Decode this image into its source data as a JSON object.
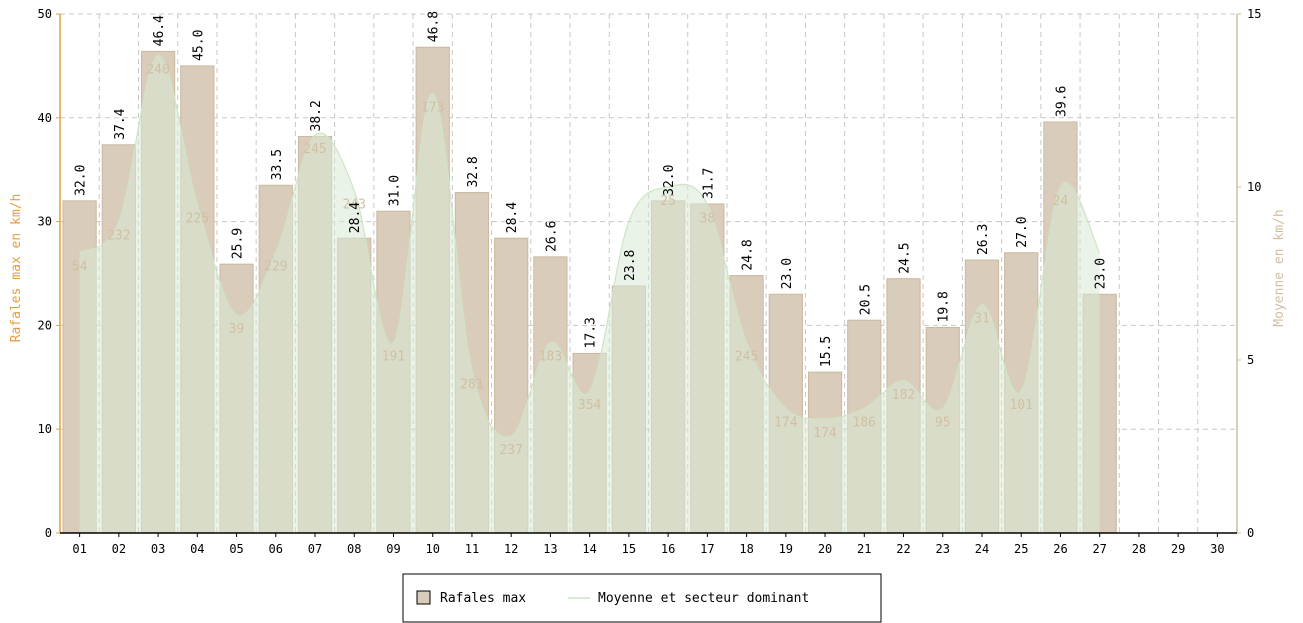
{
  "chart_data": {
    "type": "bar",
    "categories": [
      "01",
      "02",
      "03",
      "04",
      "05",
      "06",
      "07",
      "08",
      "09",
      "10",
      "11",
      "12",
      "13",
      "14",
      "15",
      "16",
      "17",
      "18",
      "19",
      "20",
      "21",
      "22",
      "23",
      "24",
      "25",
      "26",
      "27",
      "28",
      "29",
      "30"
    ],
    "series": [
      {
        "name": "Rafales max",
        "axis": "left",
        "values": [
          32.0,
          37.4,
          46.4,
          45.0,
          25.9,
          33.5,
          38.2,
          28.4,
          31.0,
          46.8,
          32.8,
          28.4,
          26.6,
          17.3,
          23.8,
          32.0,
          31.7,
          24.8,
          23.0,
          15.5,
          20.5,
          24.5,
          19.8,
          26.3,
          27.0,
          39.6,
          23.0,
          null,
          null,
          null
        ],
        "value_labels": [
          "32.0",
          "37.4",
          "46.4",
          "45.0",
          "25.9",
          "33.5",
          "38.2",
          "28.4",
          "31.0",
          "46.8",
          "32.8",
          "28.4",
          "26.6",
          "17.3",
          "23.8",
          "32.0",
          "31.7",
          "24.8",
          "23.0",
          "15.5",
          "20.5",
          "24.5",
          "19.8",
          "26.3",
          "27.0",
          "39.6",
          "23.0"
        ],
        "color": "#d9ccba"
      },
      {
        "name": "Moyenne et secteur dominant",
        "axis": "right",
        "type": "area",
        "values": [
          8.1,
          9.0,
          13.8,
          9.5,
          6.3,
          8.1,
          11.5,
          9.9,
          5.5,
          12.7,
          4.7,
          2.8,
          5.5,
          4.1,
          9.0,
          10.0,
          9.5,
          5.5,
          3.6,
          3.3,
          3.6,
          4.4,
          3.6,
          6.6,
          4.1,
          10.0,
          8.1,
          null,
          null,
          null
        ],
        "sector_labels": [
          "54",
          "232",
          "240",
          "225",
          "39",
          "229",
          "245",
          "243",
          "191",
          "173",
          "281",
          "237",
          "183",
          "354",
          "",
          "25",
          "38",
          "245",
          "174",
          "174",
          "186",
          "182",
          "95",
          "31",
          "101",
          "24",
          ""
        ],
        "color": "#d8ead5"
      }
    ],
    "ylabel": "Rafales max en km/h",
    "y2label": "Moyenne en km/h",
    "ylim": [
      0,
      50
    ],
    "y2lim": [
      0,
      15
    ],
    "yticks": [
      "0",
      "10",
      "20",
      "30",
      "40",
      "50"
    ],
    "y2ticks": [
      "0",
      "5",
      "10",
      "15"
    ],
    "grid": true,
    "legend_position": "bottom"
  },
  "legend": {
    "bar_label": "Rafales max",
    "line_label": "Moyenne et secteur dominant"
  },
  "colors": {
    "bar": "#d9ccba",
    "bar_stroke": "#c9b99f",
    "area": "#d8ead5",
    "area_line": "#cfe3c6",
    "axis_left": "#e0a040",
    "axis_right": "#d2bfa3",
    "grid": "#c8c8c8"
  }
}
